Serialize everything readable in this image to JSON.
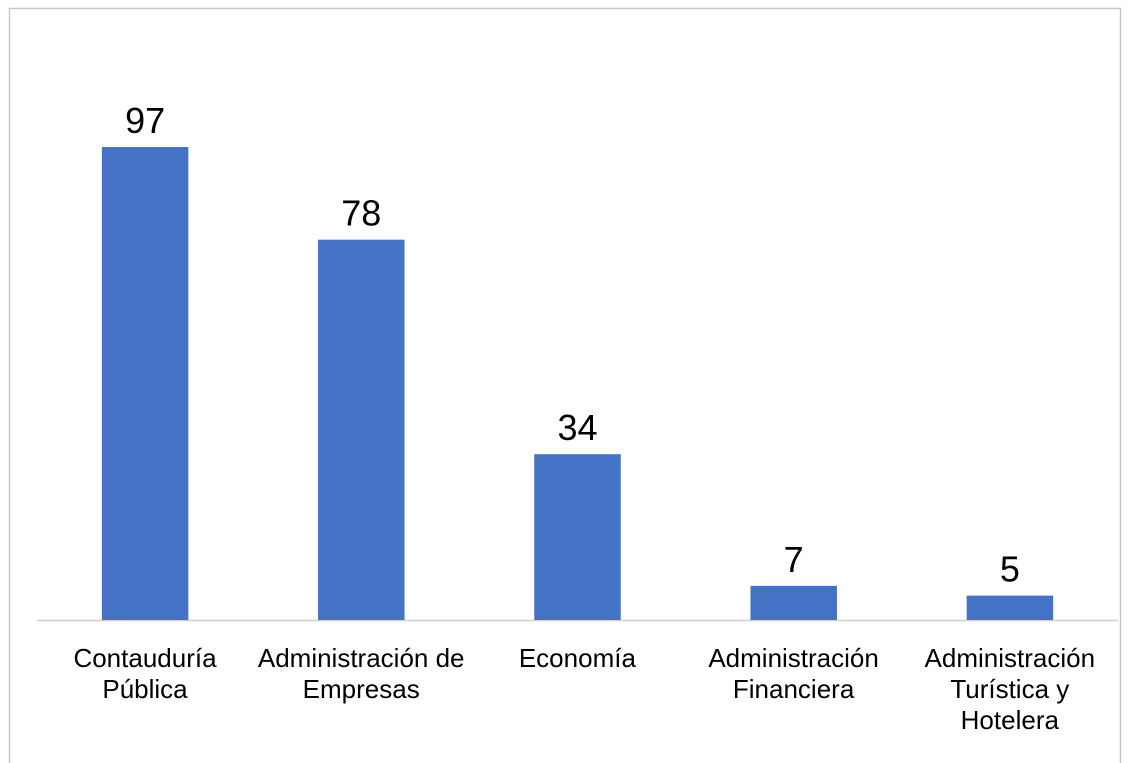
{
  "chart_data": {
    "type": "bar",
    "categories": [
      "Contauduría Pública",
      "Administración de Empresas",
      "Economía",
      "Administración Financiera",
      "Administración Turística y Hotelera"
    ],
    "values": [
      97,
      78,
      34,
      7,
      5
    ],
    "color": "#4472c4"
  }
}
